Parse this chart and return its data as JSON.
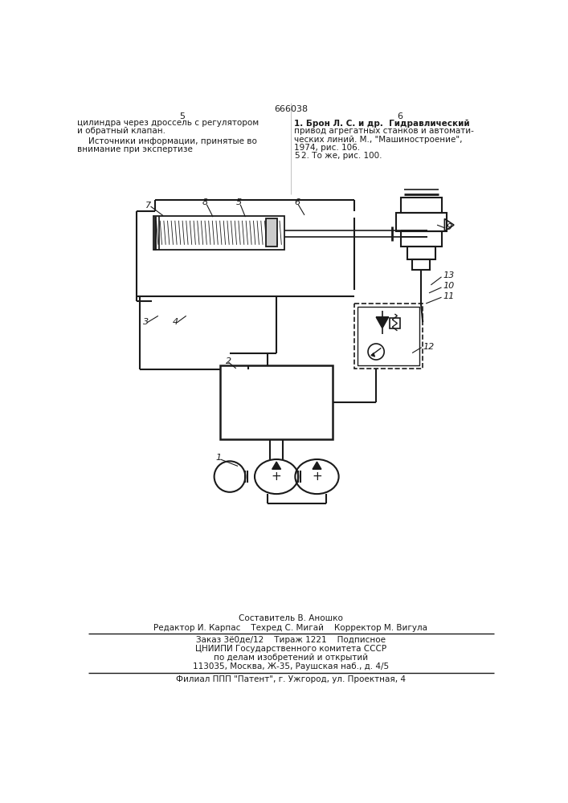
{
  "page_number_center": "666038",
  "page_left": "5",
  "page_right": "6",
  "left_text_lines": [
    "цилиндра через дроссель с регулятором",
    "и обратный клапан.",
    "Источники информации, принятые во",
    "внимание при экспертизе"
  ],
  "right_text_lines": [
    "1. Брон Л. С. и др.  Гидравлический",
    "привод агрегатных станков и автомати-",
    "ческих линий. М., \"Машиностроение\",",
    "1974, рис. 106.",
    "2. То же, рис. 100."
  ],
  "footer_lines": [
    "Составитель В. Аношко",
    "Редактор И. Карпас    Техред С. Мигай    Корректор М. Вигула",
    "Заказ 3ё0де/12    Тираж 1221    Подписное",
    "ЦНИИПИ Государственного комитета СССР",
    "по делам изобретений и открытий",
    "113035, Москва, Ж-35, Раушская наб., д. 4/5",
    "Филиал ППП \"Патент\", г. Ужгород, ул. Проектная, 4"
  ],
  "bg_color": "#ffffff",
  "line_color": "#1a1a1a",
  "text_color": "#1a1a1a"
}
